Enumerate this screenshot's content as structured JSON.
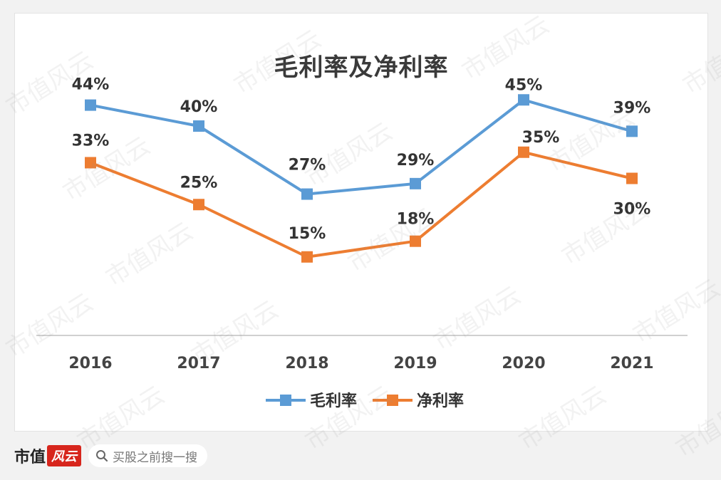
{
  "chart_data": {
    "type": "line",
    "title": "毛利率及净利率",
    "categories": [
      "2016",
      "2017",
      "2018",
      "2019",
      "2020",
      "2021"
    ],
    "ylim": [
      0,
      60
    ],
    "grid": false,
    "legend_position": "bottom",
    "series": [
      {
        "name": "毛利率",
        "values": [
          44,
          40,
          27,
          29,
          45,
          39
        ],
        "labels": [
          "44%",
          "40%",
          "27%",
          "29%",
          "45%",
          "39%"
        ],
        "color": "#5b9bd5"
      },
      {
        "name": "净利率",
        "values": [
          33,
          25,
          15,
          18,
          35,
          30
        ],
        "labels": [
          "33%",
          "25%",
          "15%",
          "18%",
          "35%",
          "30%"
        ],
        "color": "#ed7d31"
      }
    ]
  },
  "footer": {
    "brand_name": "市值",
    "brand_seal": "风云",
    "search_text": "买股之前搜一搜",
    "search_icon": "search-icon"
  },
  "watermark_text": "市值风云"
}
